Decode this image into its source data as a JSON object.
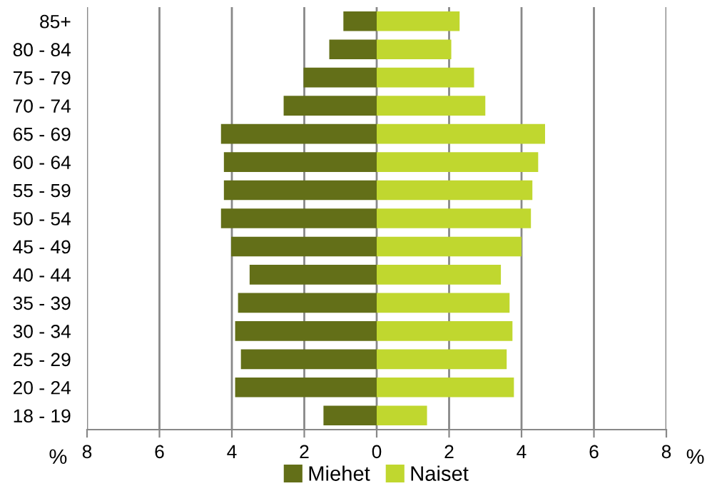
{
  "chart_data": {
    "type": "bar",
    "orientation": "horizontal",
    "stacked": true,
    "categories": [
      "85+",
      "80 - 84",
      "75 - 79",
      "70 - 74",
      "65 - 69",
      "60 - 64",
      "55 - 59",
      "50 - 54",
      "45 - 49",
      "40 - 44",
      "35 - 39",
      "30 - 34",
      "25 - 29",
      "20 - 24",
      "18 - 19"
    ],
    "series": [
      {
        "name": "Miehet",
        "color": "#636f18",
        "values": [
          -0.92,
          -1.31,
          -2.02,
          -2.57,
          -4.3,
          -4.22,
          -4.22,
          -4.3,
          -4.02,
          -3.51,
          -3.83,
          -3.91,
          -3.75,
          -3.91,
          -1.47
        ]
      },
      {
        "name": "Naiset",
        "color": "#c0d72f",
        "values": [
          2.29,
          2.06,
          2.69,
          3.0,
          4.65,
          4.46,
          4.3,
          4.26,
          4.0,
          3.43,
          3.67,
          3.75,
          3.59,
          3.79,
          1.39
        ]
      }
    ],
    "xlim": [
      -8,
      8
    ],
    "xticks": [
      {
        "value": -8,
        "label": "8"
      },
      {
        "value": -6,
        "label": "6"
      },
      {
        "value": -4,
        "label": "4"
      },
      {
        "value": -2,
        "label": "2"
      },
      0,
      2,
      4,
      6,
      8
    ],
    "annotations": [
      "%",
      "%"
    ],
    "grid": "x",
    "legend": "bottom"
  }
}
